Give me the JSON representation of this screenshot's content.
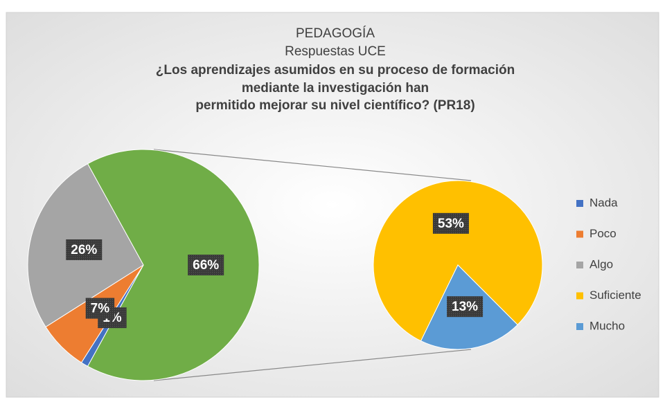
{
  "chart_data": {
    "type": "pie_of_pie",
    "title": [
      "PEDAGOGÍA",
      "Respuestas UCE"
    ],
    "subtitle": [
      "¿Los aprendizajes asumidos en su proceso de formación",
      "mediante la investigación han",
      "permitido mejorar su nivel científico? (PR18)"
    ],
    "categories": [
      "Nada",
      "Poco",
      "Algo",
      "Suficiente",
      "Mucho"
    ],
    "values": [
      1,
      7,
      26,
      53,
      13
    ],
    "value_labels": [
      "1%",
      "7%",
      "26%",
      "53%",
      "13%"
    ],
    "colors": [
      "#4472c4",
      "#ed7d31",
      "#a5a5a5",
      "#ffc000",
      "#5b9bd5"
    ],
    "secondary_count": 2,
    "other_value": 66,
    "other_value_label": "66%",
    "other_color": "#70ad47",
    "legend": "right"
  }
}
